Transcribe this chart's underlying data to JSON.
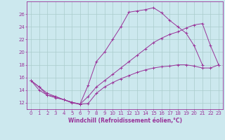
{
  "background_color": "#cce8ee",
  "grid_color": "#aacccc",
  "line_color": "#993399",
  "xlabel": "Windchill (Refroidissement éolien,°C)",
  "xlabel_fontsize": 5.5,
  "tick_fontsize": 5,
  "xlim": [
    -0.5,
    23.5
  ],
  "ylim": [
    11.0,
    28.0
  ],
  "yticks": [
    12,
    14,
    16,
    18,
    20,
    22,
    24,
    26
  ],
  "xticks": [
    0,
    1,
    2,
    3,
    4,
    5,
    6,
    7,
    8,
    9,
    10,
    11,
    12,
    13,
    14,
    15,
    16,
    17,
    18,
    19,
    20,
    21,
    22,
    23
  ],
  "line1_x": [
    0,
    1,
    2,
    3,
    4,
    5,
    6,
    7,
    8,
    9,
    10,
    11,
    12,
    13,
    14,
    15,
    16,
    17,
    18,
    19,
    20,
    21
  ],
  "line1_y": [
    15.5,
    14.5,
    13.2,
    13.0,
    12.5,
    12.0,
    11.8,
    14.8,
    18.5,
    20.0,
    22.0,
    24.0,
    26.3,
    26.5,
    26.7,
    27.0,
    26.2,
    25.0,
    24.0,
    23.0,
    21.0,
    18.0
  ],
  "line2_x": [
    0,
    1,
    2,
    3,
    4,
    5,
    6,
    7,
    8,
    9,
    10,
    11,
    12,
    13,
    14,
    15,
    16,
    17,
    18,
    19,
    20,
    21,
    22,
    23
  ],
  "line2_y": [
    15.5,
    14.0,
    13.2,
    12.8,
    12.5,
    12.1,
    11.8,
    13.0,
    14.5,
    15.5,
    16.5,
    17.5,
    18.5,
    19.5,
    20.5,
    21.5,
    22.2,
    22.8,
    23.2,
    23.8,
    24.3,
    24.5,
    21.0,
    18.0
  ],
  "line3_x": [
    0,
    1,
    2,
    3,
    4,
    5,
    6,
    7,
    8,
    9,
    10,
    11,
    12,
    13,
    14,
    15,
    16,
    17,
    18,
    19,
    20,
    21,
    22,
    23
  ],
  "line3_y": [
    15.5,
    14.5,
    13.5,
    13.0,
    12.5,
    12.1,
    11.8,
    11.9,
    13.5,
    14.5,
    15.2,
    15.8,
    16.3,
    16.8,
    17.2,
    17.5,
    17.7,
    17.8,
    18.0,
    18.0,
    17.8,
    17.5,
    17.5,
    18.0
  ]
}
